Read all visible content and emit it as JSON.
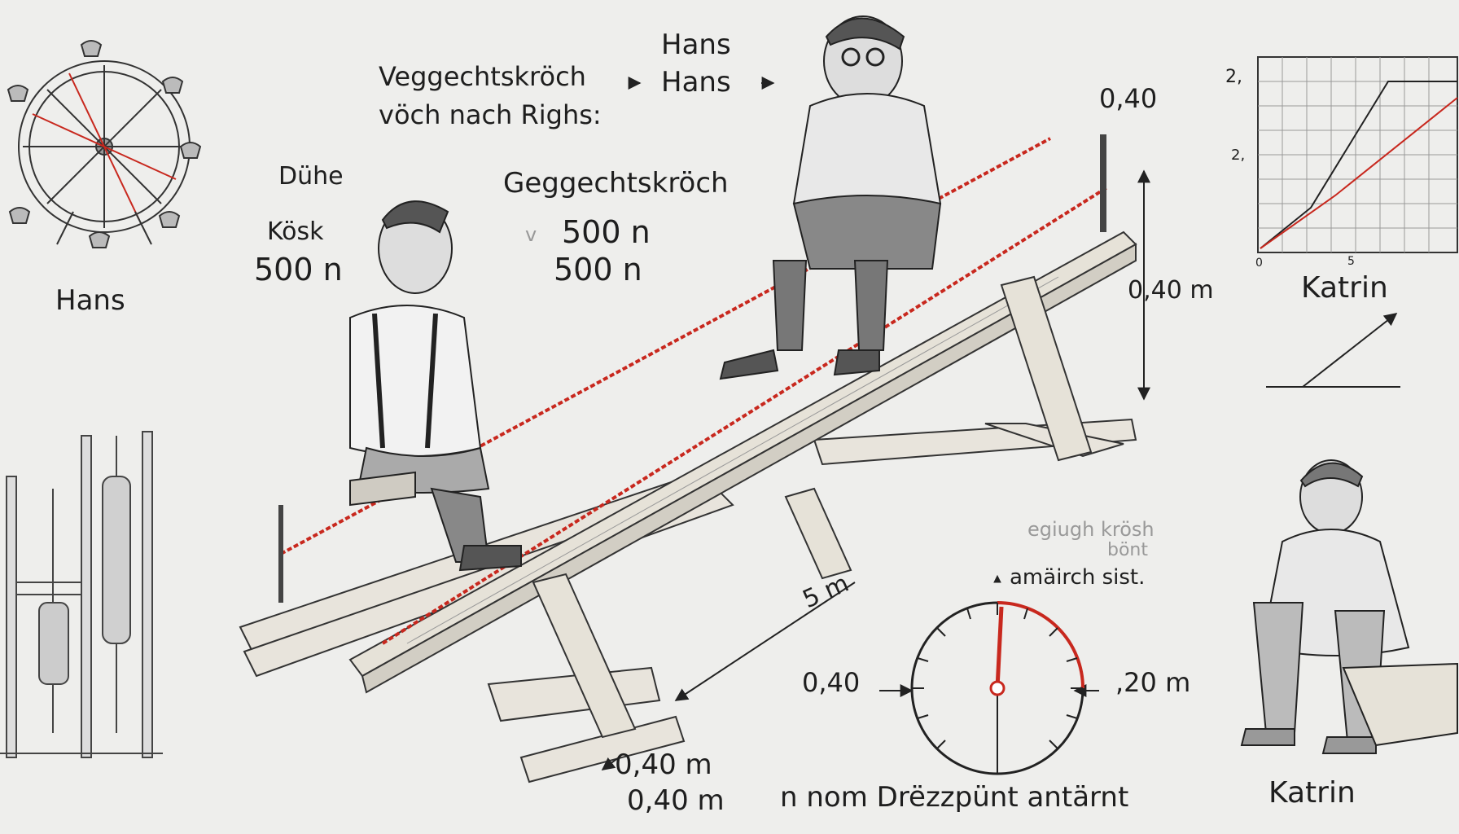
{
  "labels": {
    "hans_top_1": "Hans",
    "hans_top_2": "Hans",
    "heading_line1": "Veggechtskröch",
    "heading_line2": "vöch nach Righs:",
    "duhe": "Dühe",
    "kosk": "Kösk",
    "kosk_value": "500 n",
    "gegg_label": "Geggechtskröch",
    "gegg_value_1": "500 n",
    "gegg_value_2": "500 n",
    "gegg_marker": "v",
    "hans_left": "Hans",
    "height_top": "0,40",
    "height_right": "0,40 m",
    "length_label": "5 m",
    "bottom_dim_1": "0,40 m",
    "bottom_dim_2": "0,40 m",
    "gauge_left": "0,40",
    "gauge_right": ",20 m",
    "note_line1": "egiugh krösh",
    "note_line2": "bönt",
    "note_line3": "amäirch  sist.",
    "footer_caption": "n nom Drëzzpünt antärnt",
    "katrin_chart": "Katrin",
    "katrin_bottom": "Katrin",
    "chart_tick_top": "2,",
    "chart_tick_mid": "2,",
    "chart_tick_origin": "0",
    "chart_tick_x": "5"
  },
  "colors": {
    "ink": "#1e1e1e",
    "rope": "#c8281e",
    "wood": "#e8e4dc",
    "paper": "#eeeeec"
  },
  "icons": {
    "gauge": "dial-gauge-icon",
    "arrow": "arrow-icon"
  }
}
